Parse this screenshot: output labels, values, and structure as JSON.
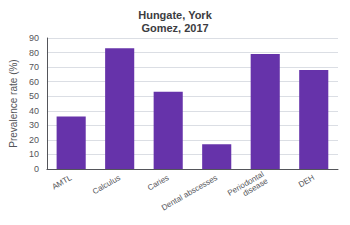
{
  "chart_data": {
    "type": "bar",
    "title": "Hungate, York\nGomez, 2017",
    "categories": [
      "AMTL",
      "Calculus",
      "Caries",
      "Dental abscesses",
      "Periodontal\ndisease",
      "DEH"
    ],
    "values": [
      36,
      83,
      53,
      17,
      79,
      68
    ],
    "color": "#6633aa",
    "ylabel": "Prevalence rate (%)",
    "ylim": [
      0,
      90
    ],
    "yticks": [
      0,
      10,
      20,
      30,
      40,
      50,
      60,
      70,
      80,
      90
    ],
    "grid": true
  }
}
